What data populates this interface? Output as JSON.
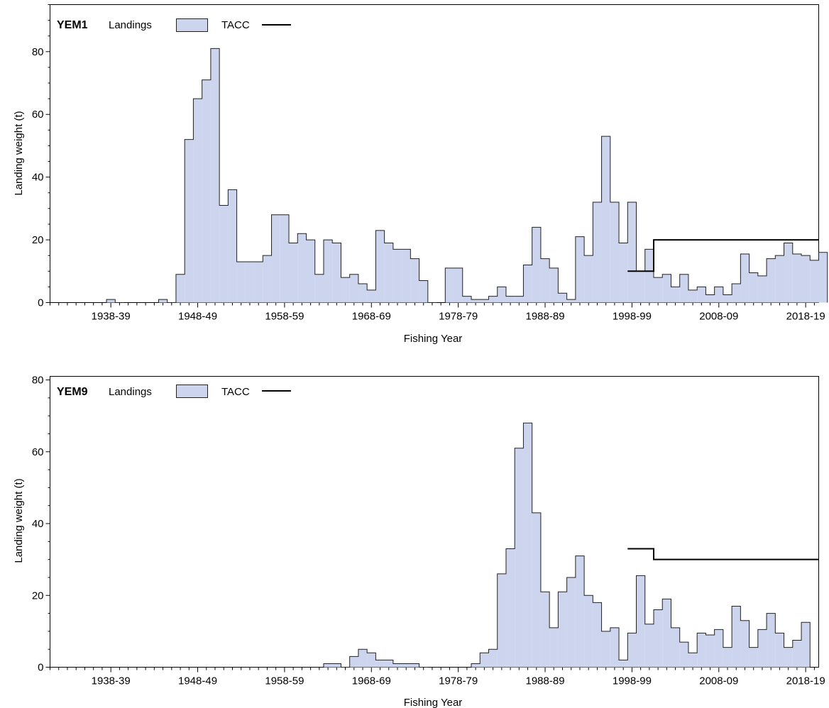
{
  "chart_data": [
    {
      "type": "bar",
      "panel_label": "YEM1",
      "legend": {
        "landings_label": "Landings",
        "tacc_label": "TACC",
        "placement": "top-left"
      },
      "xlabel": "Fishing Year",
      "ylabel": "Landing weight (t)",
      "ylim": [
        0,
        95
      ],
      "yticks": [
        0,
        20,
        40,
        60,
        80
      ],
      "xlim": [
        1931,
        2019.5
      ],
      "xticks": [
        {
          "year": 1938,
          "label": "1938-39"
        },
        {
          "year": 1948,
          "label": "1948-49"
        },
        {
          "year": 1958,
          "label": "1958-59"
        },
        {
          "year": 1968,
          "label": "1968-69"
        },
        {
          "year": 1978,
          "label": "1978-79"
        },
        {
          "year": 1988,
          "label": "1988-89"
        },
        {
          "year": 1998,
          "label": "1998-99"
        },
        {
          "year": 2008,
          "label": "2008-09"
        },
        {
          "year": 2018,
          "label": "2018-19"
        }
      ],
      "fill_color": "#ccd4ee",
      "line_color": "#000000",
      "landings": {
        "start_year": 1931,
        "values": [
          0,
          0,
          0,
          0,
          0,
          0,
          0,
          1,
          0,
          0,
          0,
          0,
          0,
          1,
          0,
          9,
          52,
          65,
          71,
          81,
          31,
          36,
          13,
          13,
          13,
          15,
          28,
          28,
          19,
          22,
          20,
          9,
          20,
          19,
          8,
          9,
          6,
          4,
          23,
          19,
          17,
          17,
          14,
          7,
          0,
          0,
          11,
          11,
          2,
          1,
          1,
          2,
          5,
          2,
          2,
          12,
          24,
          14,
          11,
          3,
          1,
          21,
          15,
          32,
          53,
          32,
          19,
          32,
          10,
          17,
          8,
          9,
          5,
          9,
          4,
          5,
          2.5,
          5,
          2.5,
          6,
          15.5,
          9.5,
          8.5,
          14,
          15,
          19,
          15.5,
          15,
          13.5,
          16
        ]
      },
      "tacc": {
        "start_year": 1998,
        "values": [
          10,
          10,
          10,
          20,
          20,
          20,
          20,
          20,
          20,
          20,
          20,
          20,
          20,
          20,
          20,
          20,
          20,
          20,
          20,
          20,
          20,
          20
        ]
      }
    },
    {
      "type": "bar",
      "panel_label": "YEM9",
      "legend": {
        "landings_label": "Landings",
        "tacc_label": "TACC",
        "placement": "top-left"
      },
      "xlabel": "Fishing Year",
      "ylabel": "Landing weight (t)",
      "ylim": [
        0,
        81
      ],
      "yticks": [
        0,
        20,
        40,
        60,
        80
      ],
      "xlim": [
        1931,
        2019.5
      ],
      "xticks": [
        {
          "year": 1938,
          "label": "1938-39"
        },
        {
          "year": 1948,
          "label": "1948-49"
        },
        {
          "year": 1958,
          "label": "1958-59"
        },
        {
          "year": 1968,
          "label": "1968-69"
        },
        {
          "year": 1978,
          "label": "1978-79"
        },
        {
          "year": 1988,
          "label": "1988-89"
        },
        {
          "year": 1998,
          "label": "1998-99"
        },
        {
          "year": 2008,
          "label": "2008-09"
        },
        {
          "year": 2018,
          "label": "2018-19"
        }
      ],
      "fill_color": "#ccd4ee",
      "line_color": "#000000",
      "landings": {
        "start_year": 1931,
        "values": [
          0,
          0,
          0,
          0,
          0,
          0,
          0,
          0,
          0,
          0,
          0,
          0,
          0,
          0,
          0,
          0,
          0,
          0,
          0,
          0,
          0,
          0,
          0,
          0,
          0,
          0,
          0,
          0,
          0,
          0,
          0,
          0,
          1,
          1,
          0,
          3,
          5,
          4,
          2,
          2,
          1,
          1,
          1,
          0,
          0,
          0,
          0,
          0,
          0,
          1,
          4,
          5,
          26,
          33,
          61,
          68,
          43,
          21,
          11,
          21,
          25,
          31,
          20,
          18,
          10,
          11,
          2,
          9.5,
          25.5,
          12,
          16,
          19,
          11,
          7,
          4,
          9.5,
          9,
          10.5,
          5.5,
          17,
          13,
          5.5,
          10.5,
          15,
          9.5,
          5.5,
          7.5,
          12.5
        ]
      },
      "tacc": {
        "start_year": 1998,
        "values": [
          33,
          33,
          33,
          30,
          30,
          30,
          30,
          30,
          30,
          30,
          30,
          30,
          30,
          30,
          30,
          30,
          30,
          30,
          30,
          30,
          30,
          30
        ]
      }
    }
  ]
}
